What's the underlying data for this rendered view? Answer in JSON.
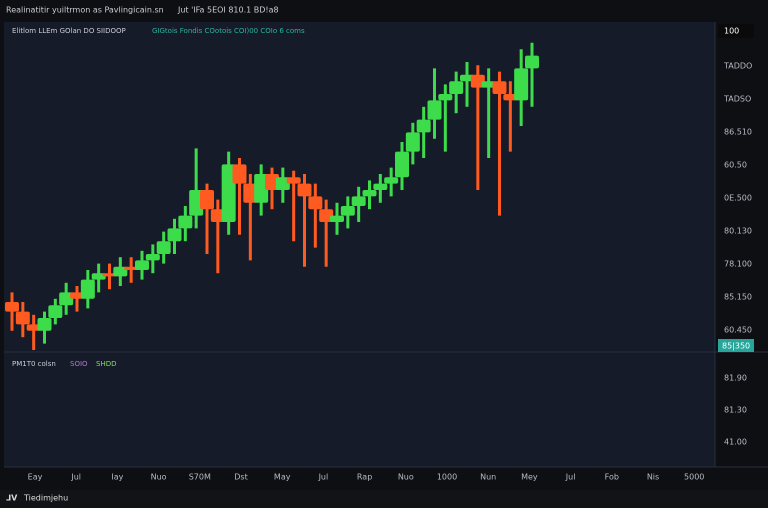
{
  "header": {
    "title": "Realinatitir yuiltrmon as Pavlingicain.sn",
    "info": "Jut 'IFa 5EOI 810.1 BD!a8"
  },
  "legend": {
    "symbol": "Elitlom LLEm GOlan  DO  SIIDOOP",
    "studies": "GIGtois  Fondis  COotois  COI)00  COIo 6 coms"
  },
  "price_axis": {
    "top_box": "100",
    "labels": [
      "TADDO",
      "TADSO",
      "86.510",
      "60.50",
      "0E.500",
      "80.130",
      "78.100",
      "85.150",
      "60.450"
    ],
    "last_box": "85|350"
  },
  "volume_pane": {
    "label": "PM1T0 colsn",
    "value_a": "SOIO",
    "value_b": "SHDD",
    "labels": [
      "81.90",
      "81.30",
      "41.00"
    ]
  },
  "time_axis": {
    "labels": [
      "Eay",
      "Jul",
      "Iay",
      "Nuo",
      "S70M",
      "Dst",
      "May",
      "Jul",
      "Rap",
      "Nuo",
      "1000",
      "Nun",
      "Mey",
      "Jul",
      "Fob",
      "Nis",
      "5000"
    ]
  },
  "footer": {
    "brand": "Tiedimjehu"
  },
  "candles": {
    "up_color": "#3ddc4a",
    "down_color": "#ff5a1f",
    "open": [
      15,
      12,
      8,
      6,
      10,
      14,
      18,
      16,
      22,
      24,
      23,
      26,
      25,
      28,
      30,
      34,
      38,
      42,
      50,
      44,
      40,
      58,
      52,
      46,
      55,
      50,
      54,
      52,
      48,
      44,
      40,
      42,
      45,
      48,
      50,
      52,
      54,
      62,
      68,
      72,
      78,
      80,
      84,
      86,
      82,
      84,
      80,
      78,
      88
    ],
    "high": [
      18,
      15,
      11,
      12,
      16,
      21,
      20,
      25,
      27,
      27,
      29,
      29,
      31,
      33,
      37,
      41,
      45,
      63,
      52,
      47,
      62,
      60,
      55,
      58,
      57,
      57,
      56,
      55,
      52,
      47,
      46,
      48,
      51,
      53,
      55,
      57,
      65,
      71,
      76,
      88,
      83,
      87,
      90,
      89,
      88,
      87,
      84,
      94,
      96
    ],
    "low": [
      6,
      4,
      0,
      2,
      8,
      11,
      12,
      13,
      18,
      19,
      20,
      21,
      22,
      24,
      27,
      30,
      34,
      38,
      30,
      24,
      36,
      36,
      28,
      42,
      44,
      46,
      34,
      26,
      32,
      26,
      36,
      38,
      40,
      44,
      46,
      48,
      50,
      58,
      60,
      66,
      62,
      74,
      76,
      50,
      60,
      42,
      62,
      70,
      76
    ],
    "close": [
      12,
      8,
      6,
      10,
      14,
      18,
      16,
      22,
      24,
      23,
      26,
      25,
      28,
      30,
      34,
      38,
      42,
      50,
      44,
      40,
      58,
      52,
      46,
      55,
      50,
      54,
      52,
      48,
      44,
      40,
      42,
      45,
      48,
      50,
      52,
      54,
      62,
      68,
      72,
      78,
      80,
      84,
      86,
      82,
      84,
      80,
      78,
      88,
      92
    ]
  }
}
